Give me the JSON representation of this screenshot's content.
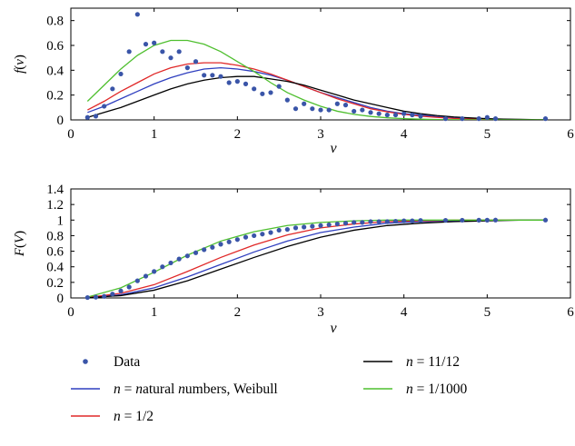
{
  "chart_data": [
    {
      "type": "scatter+line",
      "ylabel": "f(ν)",
      "xlabel": "ν",
      "xlim": [
        0,
        6
      ],
      "ylim": [
        0,
        0.9
      ],
      "xticks": [
        "0",
        "1",
        "2",
        "3",
        "4",
        "5",
        "6"
      ],
      "yticks": [
        "0",
        "0.2",
        "0.4",
        "0.6",
        "0.8"
      ],
      "grid": false,
      "series": [
        {
          "name": "Data",
          "kind": "points",
          "color": "#3a55a8",
          "x": [
            0.2,
            0.3,
            0.4,
            0.5,
            0.6,
            0.7,
            0.8,
            0.9,
            1.0,
            1.1,
            1.2,
            1.3,
            1.4,
            1.5,
            1.6,
            1.7,
            1.8,
            1.9,
            2.0,
            2.1,
            2.2,
            2.3,
            2.4,
            2.5,
            2.6,
            2.7,
            2.8,
            2.9,
            3.0,
            3.1,
            3.2,
            3.3,
            3.4,
            3.5,
            3.6,
            3.7,
            3.8,
            3.9,
            4.0,
            4.1,
            4.2,
            4.5,
            4.7,
            4.9,
            5.0,
            5.1,
            5.7
          ],
          "y": [
            0.02,
            0.03,
            0.11,
            0.25,
            0.37,
            0.55,
            0.85,
            0.61,
            0.62,
            0.55,
            0.5,
            0.55,
            0.42,
            0.47,
            0.36,
            0.36,
            0.35,
            0.3,
            0.31,
            0.29,
            0.25,
            0.21,
            0.22,
            0.27,
            0.16,
            0.09,
            0.13,
            0.09,
            0.08,
            0.08,
            0.13,
            0.12,
            0.07,
            0.08,
            0.06,
            0.05,
            0.04,
            0.04,
            0.05,
            0.04,
            0.03,
            0.01,
            0.01,
            0.01,
            0.02,
            0.01,
            0.01
          ]
        },
        {
          "name": "n = natural numbers, Weibull",
          "kind": "line",
          "color": "#2f3fbf",
          "x": [
            0.2,
            0.4,
            0.6,
            0.8,
            1.0,
            1.2,
            1.4,
            1.6,
            1.8,
            2.0,
            2.2,
            2.4,
            2.6,
            2.8,
            3.0,
            3.2,
            3.4,
            3.6,
            3.8,
            4.0,
            4.2,
            4.4,
            4.6,
            4.8,
            5.0,
            5.2,
            5.4,
            5.6,
            5.7
          ],
          "y": [
            0.06,
            0.11,
            0.17,
            0.23,
            0.29,
            0.34,
            0.38,
            0.41,
            0.42,
            0.41,
            0.39,
            0.36,
            0.32,
            0.27,
            0.22,
            0.18,
            0.14,
            0.1,
            0.07,
            0.05,
            0.04,
            0.025,
            0.016,
            0.01,
            0.006,
            0.004,
            0.002,
            0.001,
            0.001
          ]
        },
        {
          "name": "n = 1/2",
          "kind": "line",
          "color": "#e02828",
          "x": [
            0.2,
            0.4,
            0.6,
            0.8,
            1.0,
            1.2,
            1.4,
            1.6,
            1.8,
            2.0,
            2.2,
            2.4,
            2.6,
            2.8,
            3.0,
            3.2,
            3.4,
            3.6,
            3.8,
            4.0,
            4.2,
            4.4,
            4.6,
            4.8,
            5.0,
            5.2,
            5.4,
            5.6,
            5.7
          ],
          "y": [
            0.08,
            0.15,
            0.23,
            0.3,
            0.37,
            0.42,
            0.45,
            0.46,
            0.46,
            0.44,
            0.41,
            0.37,
            0.32,
            0.27,
            0.22,
            0.17,
            0.13,
            0.09,
            0.065,
            0.045,
            0.03,
            0.02,
            0.012,
            0.007,
            0.004,
            0.002,
            0.001,
            0.001,
            0.0
          ]
        },
        {
          "name": "n = 11/12",
          "kind": "line",
          "color": "#000000",
          "x": [
            0.2,
            0.4,
            0.6,
            0.8,
            1.0,
            1.2,
            1.4,
            1.6,
            1.8,
            2.0,
            2.2,
            2.4,
            2.6,
            2.8,
            3.0,
            3.2,
            3.4,
            3.6,
            3.8,
            4.0,
            4.2,
            4.4,
            4.6,
            4.8,
            5.0,
            5.2,
            5.4,
            5.6,
            5.7
          ],
          "y": [
            0.02,
            0.06,
            0.1,
            0.15,
            0.2,
            0.25,
            0.29,
            0.32,
            0.34,
            0.35,
            0.35,
            0.33,
            0.31,
            0.28,
            0.24,
            0.2,
            0.16,
            0.13,
            0.1,
            0.07,
            0.05,
            0.035,
            0.024,
            0.016,
            0.01,
            0.006,
            0.004,
            0.002,
            0.002
          ]
        },
        {
          "name": "n = 1/1000",
          "kind": "line",
          "color": "#4fbf2f",
          "x": [
            0.2,
            0.4,
            0.6,
            0.8,
            1.0,
            1.2,
            1.4,
            1.6,
            1.8,
            2.0,
            2.2,
            2.4,
            2.6,
            2.8,
            3.0,
            3.2,
            3.4,
            3.6,
            3.8,
            4.0,
            4.2,
            4.4,
            4.6,
            4.8,
            5.0,
            5.2,
            5.4,
            5.6,
            5.7
          ],
          "y": [
            0.15,
            0.28,
            0.41,
            0.52,
            0.6,
            0.64,
            0.64,
            0.61,
            0.55,
            0.47,
            0.39,
            0.3,
            0.22,
            0.16,
            0.11,
            0.07,
            0.045,
            0.028,
            0.017,
            0.01,
            0.006,
            0.003,
            0.002,
            0.001,
            0.0,
            0.0,
            0.0,
            0.0,
            0.0
          ]
        }
      ]
    },
    {
      "type": "scatter+line",
      "ylabel": "F(V)",
      "xlabel": "ν",
      "xlim": [
        0,
        6
      ],
      "ylim": [
        0,
        1.4
      ],
      "xticks": [
        "0",
        "1",
        "2",
        "3",
        "4",
        "5",
        "6"
      ],
      "yticks": [
        "0",
        "0.2",
        "0.4",
        "0.6",
        "0.8",
        "1",
        "1.2",
        "1.4"
      ],
      "grid": false,
      "series": [
        {
          "name": "Data",
          "kind": "points",
          "color": "#3a55a8",
          "x": [
            0.2,
            0.3,
            0.4,
            0.5,
            0.6,
            0.7,
            0.8,
            0.9,
            1.0,
            1.1,
            1.2,
            1.3,
            1.4,
            1.5,
            1.6,
            1.7,
            1.8,
            1.9,
            2.0,
            2.1,
            2.2,
            2.3,
            2.4,
            2.5,
            2.6,
            2.7,
            2.8,
            2.9,
            3.0,
            3.1,
            3.2,
            3.3,
            3.4,
            3.5,
            3.6,
            3.7,
            3.8,
            3.9,
            4.0,
            4.1,
            4.2,
            4.5,
            4.7,
            4.9,
            5.0,
            5.1,
            5.7
          ],
          "y": [
            0.005,
            0.01,
            0.02,
            0.05,
            0.09,
            0.14,
            0.22,
            0.28,
            0.34,
            0.4,
            0.45,
            0.5,
            0.54,
            0.58,
            0.62,
            0.65,
            0.69,
            0.72,
            0.75,
            0.78,
            0.8,
            0.82,
            0.84,
            0.87,
            0.88,
            0.9,
            0.91,
            0.92,
            0.93,
            0.94,
            0.95,
            0.96,
            0.97,
            0.97,
            0.98,
            0.98,
            0.98,
            0.985,
            0.99,
            0.99,
            0.995,
            0.997,
            0.998,
            0.999,
            0.999,
            1.0,
            1.0
          ]
        },
        {
          "name": "n = natural numbers, Weibull",
          "kind": "line",
          "color": "#2f3fbf",
          "x": [
            0.2,
            0.6,
            1.0,
            1.4,
            1.8,
            2.2,
            2.6,
            3.0,
            3.4,
            3.8,
            4.2,
            4.6,
            5.0,
            5.4,
            5.7
          ],
          "y": [
            0.005,
            0.04,
            0.13,
            0.27,
            0.43,
            0.59,
            0.73,
            0.84,
            0.91,
            0.96,
            0.98,
            0.99,
            1.0,
            1.0,
            1.0
          ]
        },
        {
          "name": "n = 1/2",
          "kind": "line",
          "color": "#e02828",
          "x": [
            0.2,
            0.6,
            1.0,
            1.4,
            1.8,
            2.2,
            2.6,
            3.0,
            3.4,
            3.8,
            4.2,
            4.6,
            5.0,
            5.4,
            5.7
          ],
          "y": [
            0.005,
            0.06,
            0.17,
            0.34,
            0.52,
            0.68,
            0.81,
            0.9,
            0.95,
            0.98,
            0.99,
            1.0,
            1.0,
            1.0,
            1.0
          ]
        },
        {
          "name": "n = 11/12",
          "kind": "line",
          "color": "#000000",
          "x": [
            0.2,
            0.6,
            1.0,
            1.4,
            1.8,
            2.2,
            2.6,
            3.0,
            3.4,
            3.8,
            4.2,
            4.6,
            5.0,
            5.4,
            5.7
          ],
          "y": [
            0.003,
            0.03,
            0.1,
            0.22,
            0.37,
            0.52,
            0.66,
            0.78,
            0.87,
            0.93,
            0.96,
            0.98,
            0.99,
            1.0,
            1.0
          ]
        },
        {
          "name": "n = 1/1000",
          "kind": "line",
          "color": "#4fbf2f",
          "x": [
            0.2,
            0.6,
            1.0,
            1.4,
            1.8,
            2.2,
            2.6,
            3.0,
            3.4,
            3.8,
            4.2,
            4.6,
            5.0,
            5.4,
            5.7
          ],
          "y": [
            0.01,
            0.13,
            0.33,
            0.55,
            0.73,
            0.85,
            0.93,
            0.97,
            0.99,
            1.0,
            1.0,
            1.0,
            1.0,
            1.0,
            1.0
          ]
        }
      ]
    }
  ],
  "legend": {
    "placement": "bottom",
    "items": [
      {
        "label": "Data",
        "kind": "points",
        "color": "#3a55a8"
      },
      {
        "label": "n = natural numbers, Weibull",
        "kind": "line",
        "color": "#2f3fbf"
      },
      {
        "label": "n = 1/2",
        "kind": "line",
        "color": "#e02828"
      },
      {
        "label": "n = 11/12",
        "kind": "line",
        "color": "#000000"
      },
      {
        "label": "n = 1/1000",
        "kind": "line",
        "color": "#4fbf2f"
      }
    ]
  }
}
